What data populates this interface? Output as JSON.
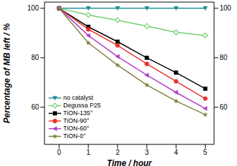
{
  "chart_data": {
    "type": "line",
    "x_label": "Time / hour",
    "y_label": "Percentage of MB left / %",
    "x": [
      0,
      1,
      2,
      3,
      4,
      5
    ],
    "xlim": [
      -0.5,
      5.3
    ],
    "xticks": [
      0,
      1,
      2,
      3,
      4,
      5
    ],
    "ylim": [
      45,
      102.5
    ],
    "yticks": [
      60,
      80,
      100
    ],
    "y2lim": [
      45,
      102.5
    ],
    "y2ticks": [
      60,
      80,
      100
    ],
    "grid": false,
    "legend": "lower left",
    "series": [
      {
        "name": "no catalyst",
        "color": "#1f8f93",
        "marker": "triangle_down",
        "values": [
          100,
          100,
          100,
          100,
          100,
          100
        ]
      },
      {
        "name": "Degussa P25",
        "color": "#6fcf6f",
        "marker": "diamond_open",
        "values": [
          100,
          97.3,
          95.2,
          92.8,
          90.3,
          89
        ]
      },
      {
        "name": "TiON-135°",
        "color": "#000000",
        "marker": "square",
        "values": [
          100,
          92.5,
          86.5,
          80,
          74,
          67.5
        ]
      },
      {
        "name": "TiON-90°",
        "color": "#e8322b",
        "marker": "circle",
        "values": [
          100,
          91.5,
          85,
          77.5,
          70.5,
          63.5
        ]
      },
      {
        "name": "TiON-60°",
        "color": "#b040c8",
        "marker": "triangle_left",
        "values": [
          100,
          89,
          80.5,
          73,
          66,
          59.5
        ]
      },
      {
        "name": "TiON-0°",
        "color": "#7f7f3a",
        "marker": "star",
        "values": [
          100,
          86,
          77,
          69,
          62.5,
          57
        ]
      }
    ]
  }
}
